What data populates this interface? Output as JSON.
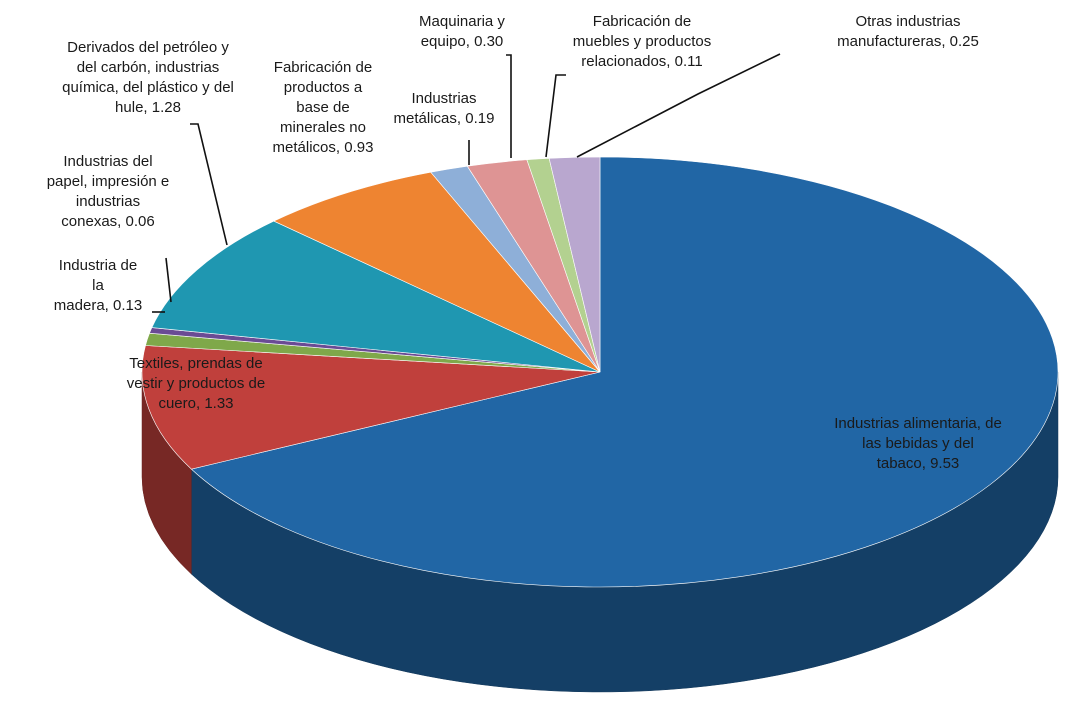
{
  "chart_data": {
    "type": "pie",
    "style": "3d",
    "title": "",
    "categories": [
      "Industrias alimentaria, de las bebidas y del tabaco",
      "Textiles, prendas de vestir y productos de cuero",
      "Industria de la madera",
      "Industrias del papel, impresión e industrias conexas",
      "Derivados del petróleo y del carbón, industrias química, del plástico y del hule",
      "Fabricación de productos a base de minerales no metálicos",
      "Industrias metálicas",
      "Maquinaria y equipo",
      "Fabricación de muebles y productos relacionados",
      "Otras industrias manufactureras"
    ],
    "values": [
      9.53,
      1.33,
      0.13,
      0.06,
      1.28,
      0.93,
      0.19,
      0.3,
      0.11,
      0.25
    ],
    "labels": [
      [
        "Industrias alimentaria, de",
        "las bebidas y del",
        "tabaco, 9.53"
      ],
      [
        "Textiles, prendas de",
        "vestir y productos de",
        "cuero, 1.33"
      ],
      [
        "Industria de",
        "la",
        "madera, 0.13"
      ],
      [
        "Industrias del",
        "papel, impresión e",
        "industrias",
        "conexas, 0.06"
      ],
      [
        "Derivados del petróleo y",
        "del carbón, industrias",
        "química, del plástico y del",
        "hule, 1.28"
      ],
      [
        "Fabricación de",
        "productos a",
        "base de",
        "minerales no",
        "metálicos, 0.93"
      ],
      [
        "Industrias",
        "metálicas, 0.19"
      ],
      [
        "Maquinaria y",
        "equipo, 0.30"
      ],
      [
        "Fabricación de",
        "muebles y productos",
        "relacionados, 0.11"
      ],
      [
        "Otras industrias",
        "manufactureras, 0.25"
      ]
    ],
    "colors": [
      "#2166a5",
      "#c0403c",
      "#7fa84a",
      "#6a4b94",
      "#1f97b1",
      "#ee8431",
      "#8eafd8",
      "#de9494",
      "#b3d190",
      "#b9a7cf"
    ],
    "legend": "none"
  }
}
